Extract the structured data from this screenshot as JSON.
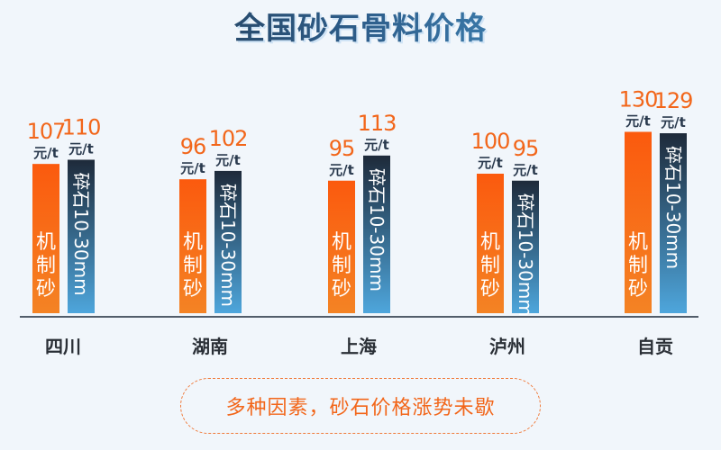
{
  "chart_data": {
    "type": "bar",
    "title": "全国砂石骨料价格",
    "categories": [
      "四川",
      "湖南",
      "上海",
      "泸州",
      "自贡"
    ],
    "unit": "元/t",
    "series": [
      {
        "name": "机制砂",
        "values": [
          107,
          96,
          95,
          100,
          130
        ],
        "color": "#f95a10"
      },
      {
        "name": "碎石10-30mm",
        "values": [
          110,
          102,
          113,
          95,
          129
        ],
        "color": "#1e2a3a"
      }
    ],
    "ylim": [
      0,
      140
    ],
    "grid": false
  },
  "footer": {
    "note": "多种因素，砂石价格涨势未歇"
  },
  "colors": {
    "value_label": "#f2661a",
    "unit_label": "#2a3a4e",
    "baseline": "#1e2a3a"
  }
}
